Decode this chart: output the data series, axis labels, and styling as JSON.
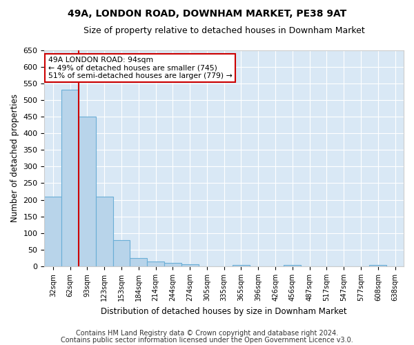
{
  "title": "49A, LONDON ROAD, DOWNHAM MARKET, PE38 9AT",
  "subtitle": "Size of property relative to detached houses in Downham Market",
  "xlabel": "Distribution of detached houses by size in Downham Market",
  "ylabel": "Number of detached properties",
  "categories": [
    "32sqm",
    "62sqm",
    "93sqm",
    "123sqm",
    "153sqm",
    "184sqm",
    "214sqm",
    "244sqm",
    "274sqm",
    "305sqm",
    "335sqm",
    "365sqm",
    "396sqm",
    "426sqm",
    "456sqm",
    "487sqm",
    "517sqm",
    "547sqm",
    "577sqm",
    "608sqm",
    "638sqm"
  ],
  "values": [
    210,
    530,
    450,
    210,
    78,
    25,
    15,
    10,
    7,
    0,
    0,
    5,
    0,
    0,
    4,
    0,
    0,
    0,
    0,
    4,
    0
  ],
  "bar_color": "#b8d4ea",
  "bar_edge_color": "#6aaed6",
  "background_color": "#d9e8f5",
  "grid_color": "#ffffff",
  "vline_color": "#cc0000",
  "vline_pos": 1.5,
  "annotation_text": "49A LONDON ROAD: 94sqm\n← 49% of detached houses are smaller (745)\n51% of semi-detached houses are larger (779) →",
  "annotation_box_color": "#ffffff",
  "annotation_box_edge_color": "#cc0000",
  "ylim": [
    0,
    650
  ],
  "yticks": [
    0,
    50,
    100,
    150,
    200,
    250,
    300,
    350,
    400,
    450,
    500,
    550,
    600,
    650
  ],
  "footer_line1": "Contains HM Land Registry data © Crown copyright and database right 2024.",
  "footer_line2": "Contains public sector information licensed under the Open Government Licence v3.0.",
  "title_fontsize": 10,
  "subtitle_fontsize": 9,
  "footer_fontsize": 7,
  "fig_bg": "#ffffff"
}
